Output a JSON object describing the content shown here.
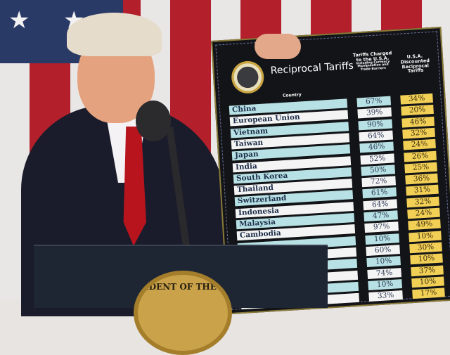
{
  "board": {
    "title": "Reciprocal Tariffs",
    "col_country": "Country",
    "col_charged": "Tariffs Charged to the U.S.A.",
    "col_charged_note": "Including Currency Manipulation and Trade Barriers",
    "col_discounted": "U.S.A. Discounted Reciprocal Tariffs",
    "rows": [
      {
        "country": "China",
        "charged": "67%",
        "discounted": "34%"
      },
      {
        "country": "European Union",
        "charged": "39%",
        "discounted": "20%"
      },
      {
        "country": "Vietnam",
        "charged": "90%",
        "discounted": "46%"
      },
      {
        "country": "Taiwan",
        "charged": "64%",
        "discounted": "32%"
      },
      {
        "country": "Japan",
        "charged": "46%",
        "discounted": "24%"
      },
      {
        "country": "India",
        "charged": "52%",
        "discounted": "26%"
      },
      {
        "country": "South Korea",
        "charged": "50%",
        "discounted": "25%"
      },
      {
        "country": "Thailand",
        "charged": "72%",
        "discounted": "36%"
      },
      {
        "country": "Switzerland",
        "charged": "61%",
        "discounted": "31%"
      },
      {
        "country": "Indonesia",
        "charged": "64%",
        "discounted": "32%"
      },
      {
        "country": "Malaysia",
        "charged": "47%",
        "discounted": "24%"
      },
      {
        "country": "Cambodia",
        "charged": "97%",
        "discounted": "49%"
      },
      {
        "country": "",
        "charged": "10%",
        "discounted": "10%"
      },
      {
        "country": "",
        "charged": "60%",
        "discounted": "30%"
      },
      {
        "country": "",
        "charged": "10%",
        "discounted": "10%"
      },
      {
        "country": "",
        "charged": "74%",
        "discounted": "37%"
      },
      {
        "country": "",
        "charged": "10%",
        "discounted": "10%"
      },
      {
        "country": "",
        "charged": "33%",
        "discounted": "17%"
      }
    ]
  },
  "podium_seal_text": "SIDENT OF THE U",
  "colors": {
    "cyan": "#b7e1e4",
    "gold": "#f2cf55",
    "flag_red": "#b3202c",
    "flag_blue": "#2a3a66"
  }
}
